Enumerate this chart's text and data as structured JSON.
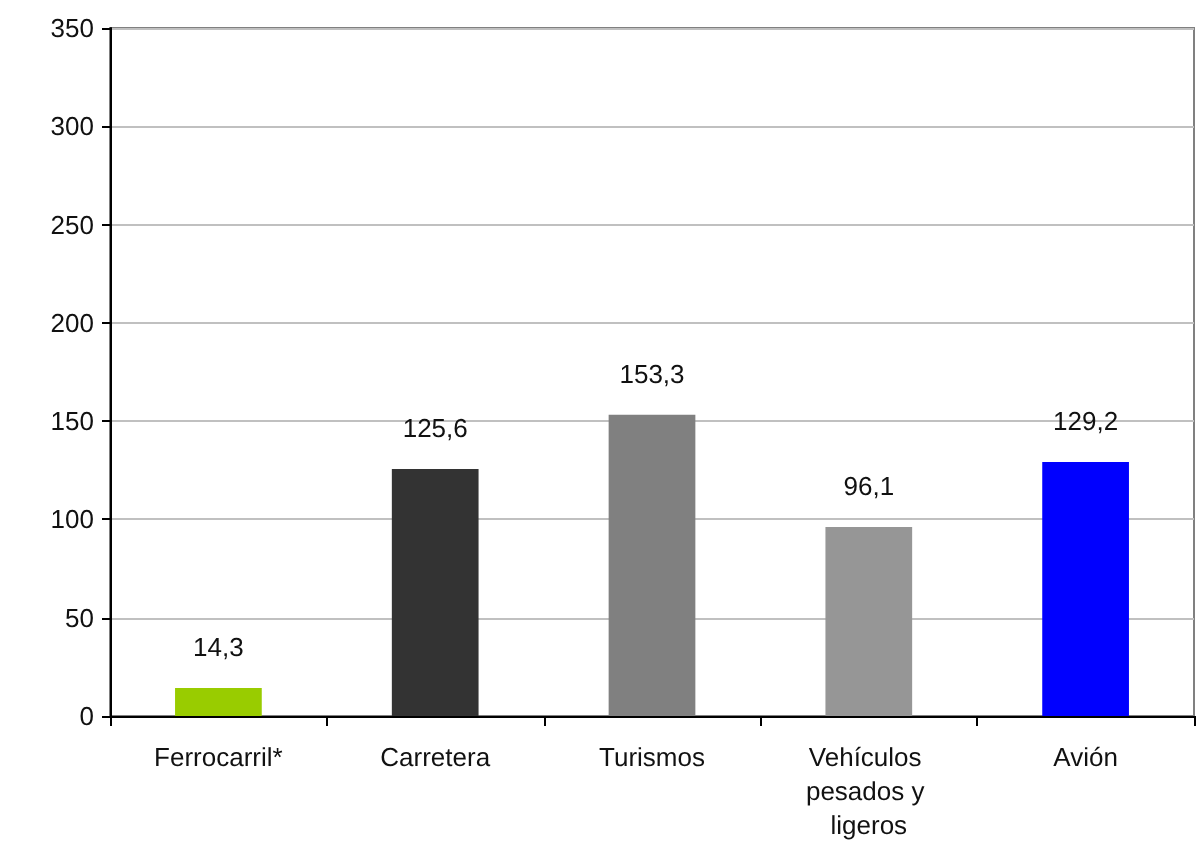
{
  "chart_data": {
    "type": "bar",
    "categories": [
      "Ferrocarril*",
      "Carretera",
      "Turismos",
      "Vehículos pesados y ligeros",
      "Avión"
    ],
    "values": [
      14.3,
      125.6,
      153.3,
      96.1,
      129.2
    ],
    "colors": [
      "#99cc00",
      "#333333",
      "#808080",
      "#969696",
      "#0000ff"
    ],
    "value_labels": [
      "14,3",
      "125,6",
      "153,3",
      "96,1",
      "129,2"
    ],
    "ylim": [
      0,
      350
    ],
    "yticks": [
      0,
      50,
      100,
      150,
      200,
      250,
      300,
      350
    ],
    "grid": "y"
  }
}
